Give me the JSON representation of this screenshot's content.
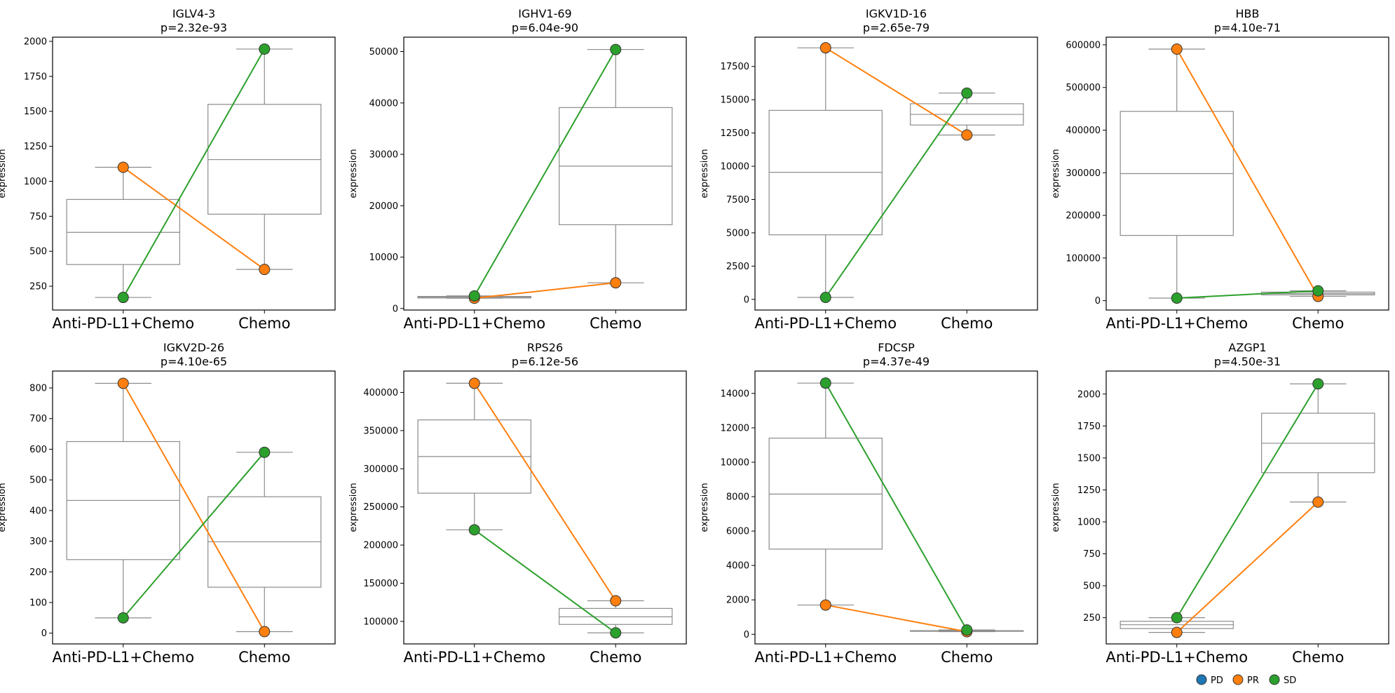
{
  "colors": {
    "PD": "#1f77b4",
    "PR": "#ff7f0e",
    "SD": "#2ca02c",
    "box": "#8c8c8c"
  },
  "legend": [
    {
      "key": "PD",
      "label": "PD"
    },
    {
      "key": "PR",
      "label": "PR"
    },
    {
      "key": "SD",
      "label": "SD"
    }
  ],
  "chart_data": [
    {
      "type": "box",
      "gene": "IGLV4-3",
      "pvalue": "p=2.32e-93",
      "categories": [
        "Anti-PD-L1+Chemo",
        "Chemo"
      ],
      "ylabel": "expression",
      "ylim": [
        80,
        2030
      ],
      "yticks": [
        250,
        500,
        750,
        1000,
        1250,
        1500,
        1750,
        2000
      ],
      "boxes": [
        {
          "whislo": 170,
          "q1": 405,
          "med": 635,
          "q3": 870,
          "whishi": 1100
        },
        {
          "whislo": 370,
          "q1": 765,
          "med": 1155,
          "q3": 1550,
          "whishi": 1945
        }
      ],
      "series": [
        {
          "name": "PR",
          "values": [
            1100,
            370
          ]
        },
        {
          "name": "SD",
          "values": [
            170,
            1945
          ]
        }
      ]
    },
    {
      "type": "box",
      "gene": "IGHV1-69",
      "pvalue": "p=6.04e-90",
      "categories": [
        "Anti-PD-L1+Chemo",
        "Chemo"
      ],
      "ylabel": "expression",
      "ylim": [
        -300,
        52800
      ],
      "yticks": [
        0,
        10000,
        20000,
        30000,
        40000,
        50000
      ],
      "boxes": [
        {
          "whislo": 2000,
          "q1": 2050,
          "med": 2200,
          "q3": 2350,
          "whishi": 2450
        },
        {
          "whislo": 5000,
          "q1": 16300,
          "med": 27700,
          "q3": 39100,
          "whishi": 50400
        }
      ],
      "series": [
        {
          "name": "PR",
          "values": [
            2000,
            5000
          ]
        },
        {
          "name": "SD",
          "values": [
            2450,
            50400
          ]
        }
      ]
    },
    {
      "type": "box",
      "gene": "IGKV1D-16",
      "pvalue": "p=2.65e-79",
      "categories": [
        "Anti-PD-L1+Chemo",
        "Chemo"
      ],
      "ylabel": "expression",
      "ylim": [
        -800,
        19700
      ],
      "yticks": [
        0,
        2500,
        5000,
        7500,
        10000,
        12500,
        15000,
        17500
      ],
      "boxes": [
        {
          "whislo": 150,
          "q1": 4850,
          "med": 9550,
          "q3": 14200,
          "whishi": 18900
        },
        {
          "whislo": 12350,
          "q1": 13100,
          "med": 13900,
          "q3": 14700,
          "whishi": 15500
        }
      ],
      "series": [
        {
          "name": "PR",
          "values": [
            18900,
            12350
          ]
        },
        {
          "name": "SD",
          "values": [
            150,
            15500
          ]
        }
      ]
    },
    {
      "type": "box",
      "gene": "HBB",
      "pvalue": "p=4.10e-71",
      "categories": [
        "Anti-PD-L1+Chemo",
        "Chemo"
      ],
      "ylabel": "expression",
      "ylim": [
        -22000,
        618000
      ],
      "yticks": [
        0,
        100000,
        200000,
        300000,
        400000,
        500000,
        600000
      ],
      "boxes": [
        {
          "whislo": 6000,
          "q1": 153000,
          "med": 298000,
          "q3": 444000,
          "whishi": 590000
        },
        {
          "whislo": 10000,
          "q1": 13500,
          "med": 16500,
          "q3": 20000,
          "whishi": 23000
        }
      ],
      "series": [
        {
          "name": "PR",
          "values": [
            590000,
            10000
          ]
        },
        {
          "name": "SD",
          "values": [
            6000,
            23000
          ]
        }
      ]
    },
    {
      "type": "box",
      "gene": "IGKV2D-26",
      "pvalue": "p=4.10e-65",
      "categories": [
        "Anti-PD-L1+Chemo",
        "Chemo"
      ],
      "ylabel": "expression",
      "ylim": [
        -35,
        855
      ],
      "yticks": [
        0,
        100,
        200,
        300,
        400,
        500,
        600,
        700,
        800
      ],
      "boxes": [
        {
          "whislo": 50,
          "q1": 240,
          "med": 433,
          "q3": 625,
          "whishi": 815
        },
        {
          "whislo": 5,
          "q1": 150,
          "med": 298,
          "q3": 445,
          "whishi": 590
        }
      ],
      "series": [
        {
          "name": "PR",
          "values": [
            815,
            5
          ]
        },
        {
          "name": "SD",
          "values": [
            50,
            590
          ]
        }
      ]
    },
    {
      "type": "box",
      "gene": "RPS26",
      "pvalue": "p=6.12e-56",
      "categories": [
        "Anti-PD-L1+Chemo",
        "Chemo"
      ],
      "ylabel": "expression",
      "ylim": [
        70500,
        428000
      ],
      "yticks": [
        100000,
        150000,
        200000,
        250000,
        300000,
        350000,
        400000
      ],
      "boxes": [
        {
          "whislo": 220000,
          "q1": 268000,
          "med": 316000,
          "q3": 364000,
          "whishi": 412000
        },
        {
          "whislo": 85000,
          "q1": 96000,
          "med": 106000,
          "q3": 117000,
          "whishi": 127000
        }
      ],
      "series": [
        {
          "name": "PR",
          "values": [
            412000,
            127000
          ]
        },
        {
          "name": "SD",
          "values": [
            220000,
            85000
          ]
        }
      ]
    },
    {
      "type": "box",
      "gene": "FDCSP",
      "pvalue": "p=4.37e-49",
      "categories": [
        "Anti-PD-L1+Chemo",
        "Chemo"
      ],
      "ylabel": "expression",
      "ylim": [
        -560,
        15300
      ],
      "yticks": [
        0,
        2000,
        4000,
        6000,
        8000,
        10000,
        12000,
        14000
      ],
      "boxes": [
        {
          "whislo": 1700,
          "q1": 4950,
          "med": 8150,
          "q3": 11400,
          "whishi": 14600
        },
        {
          "whislo": 150,
          "q1": 170,
          "med": 190,
          "q3": 210,
          "whishi": 250
        }
      ],
      "series": [
        {
          "name": "PR",
          "values": [
            1700,
            150
          ]
        },
        {
          "name": "SD",
          "values": [
            14600,
            250
          ]
        }
      ]
    },
    {
      "type": "box",
      "gene": "AZGP1",
      "pvalue": "p=4.50e-31",
      "categories": [
        "Anti-PD-L1+Chemo",
        "Chemo"
      ],
      "ylabel": "expression",
      "ylim": [
        45,
        2180
      ],
      "yticks": [
        250,
        500,
        750,
        1000,
        1250,
        1500,
        1750,
        2000
      ],
      "boxes": [
        {
          "whislo": 135,
          "q1": 165,
          "med": 195,
          "q3": 222,
          "whishi": 250
        },
        {
          "whislo": 1155,
          "q1": 1385,
          "med": 1615,
          "q3": 1850,
          "whishi": 2080
        }
      ],
      "series": [
        {
          "name": "PR",
          "values": [
            135,
            1155
          ]
        },
        {
          "name": "SD",
          "values": [
            250,
            2080
          ]
        }
      ]
    }
  ]
}
